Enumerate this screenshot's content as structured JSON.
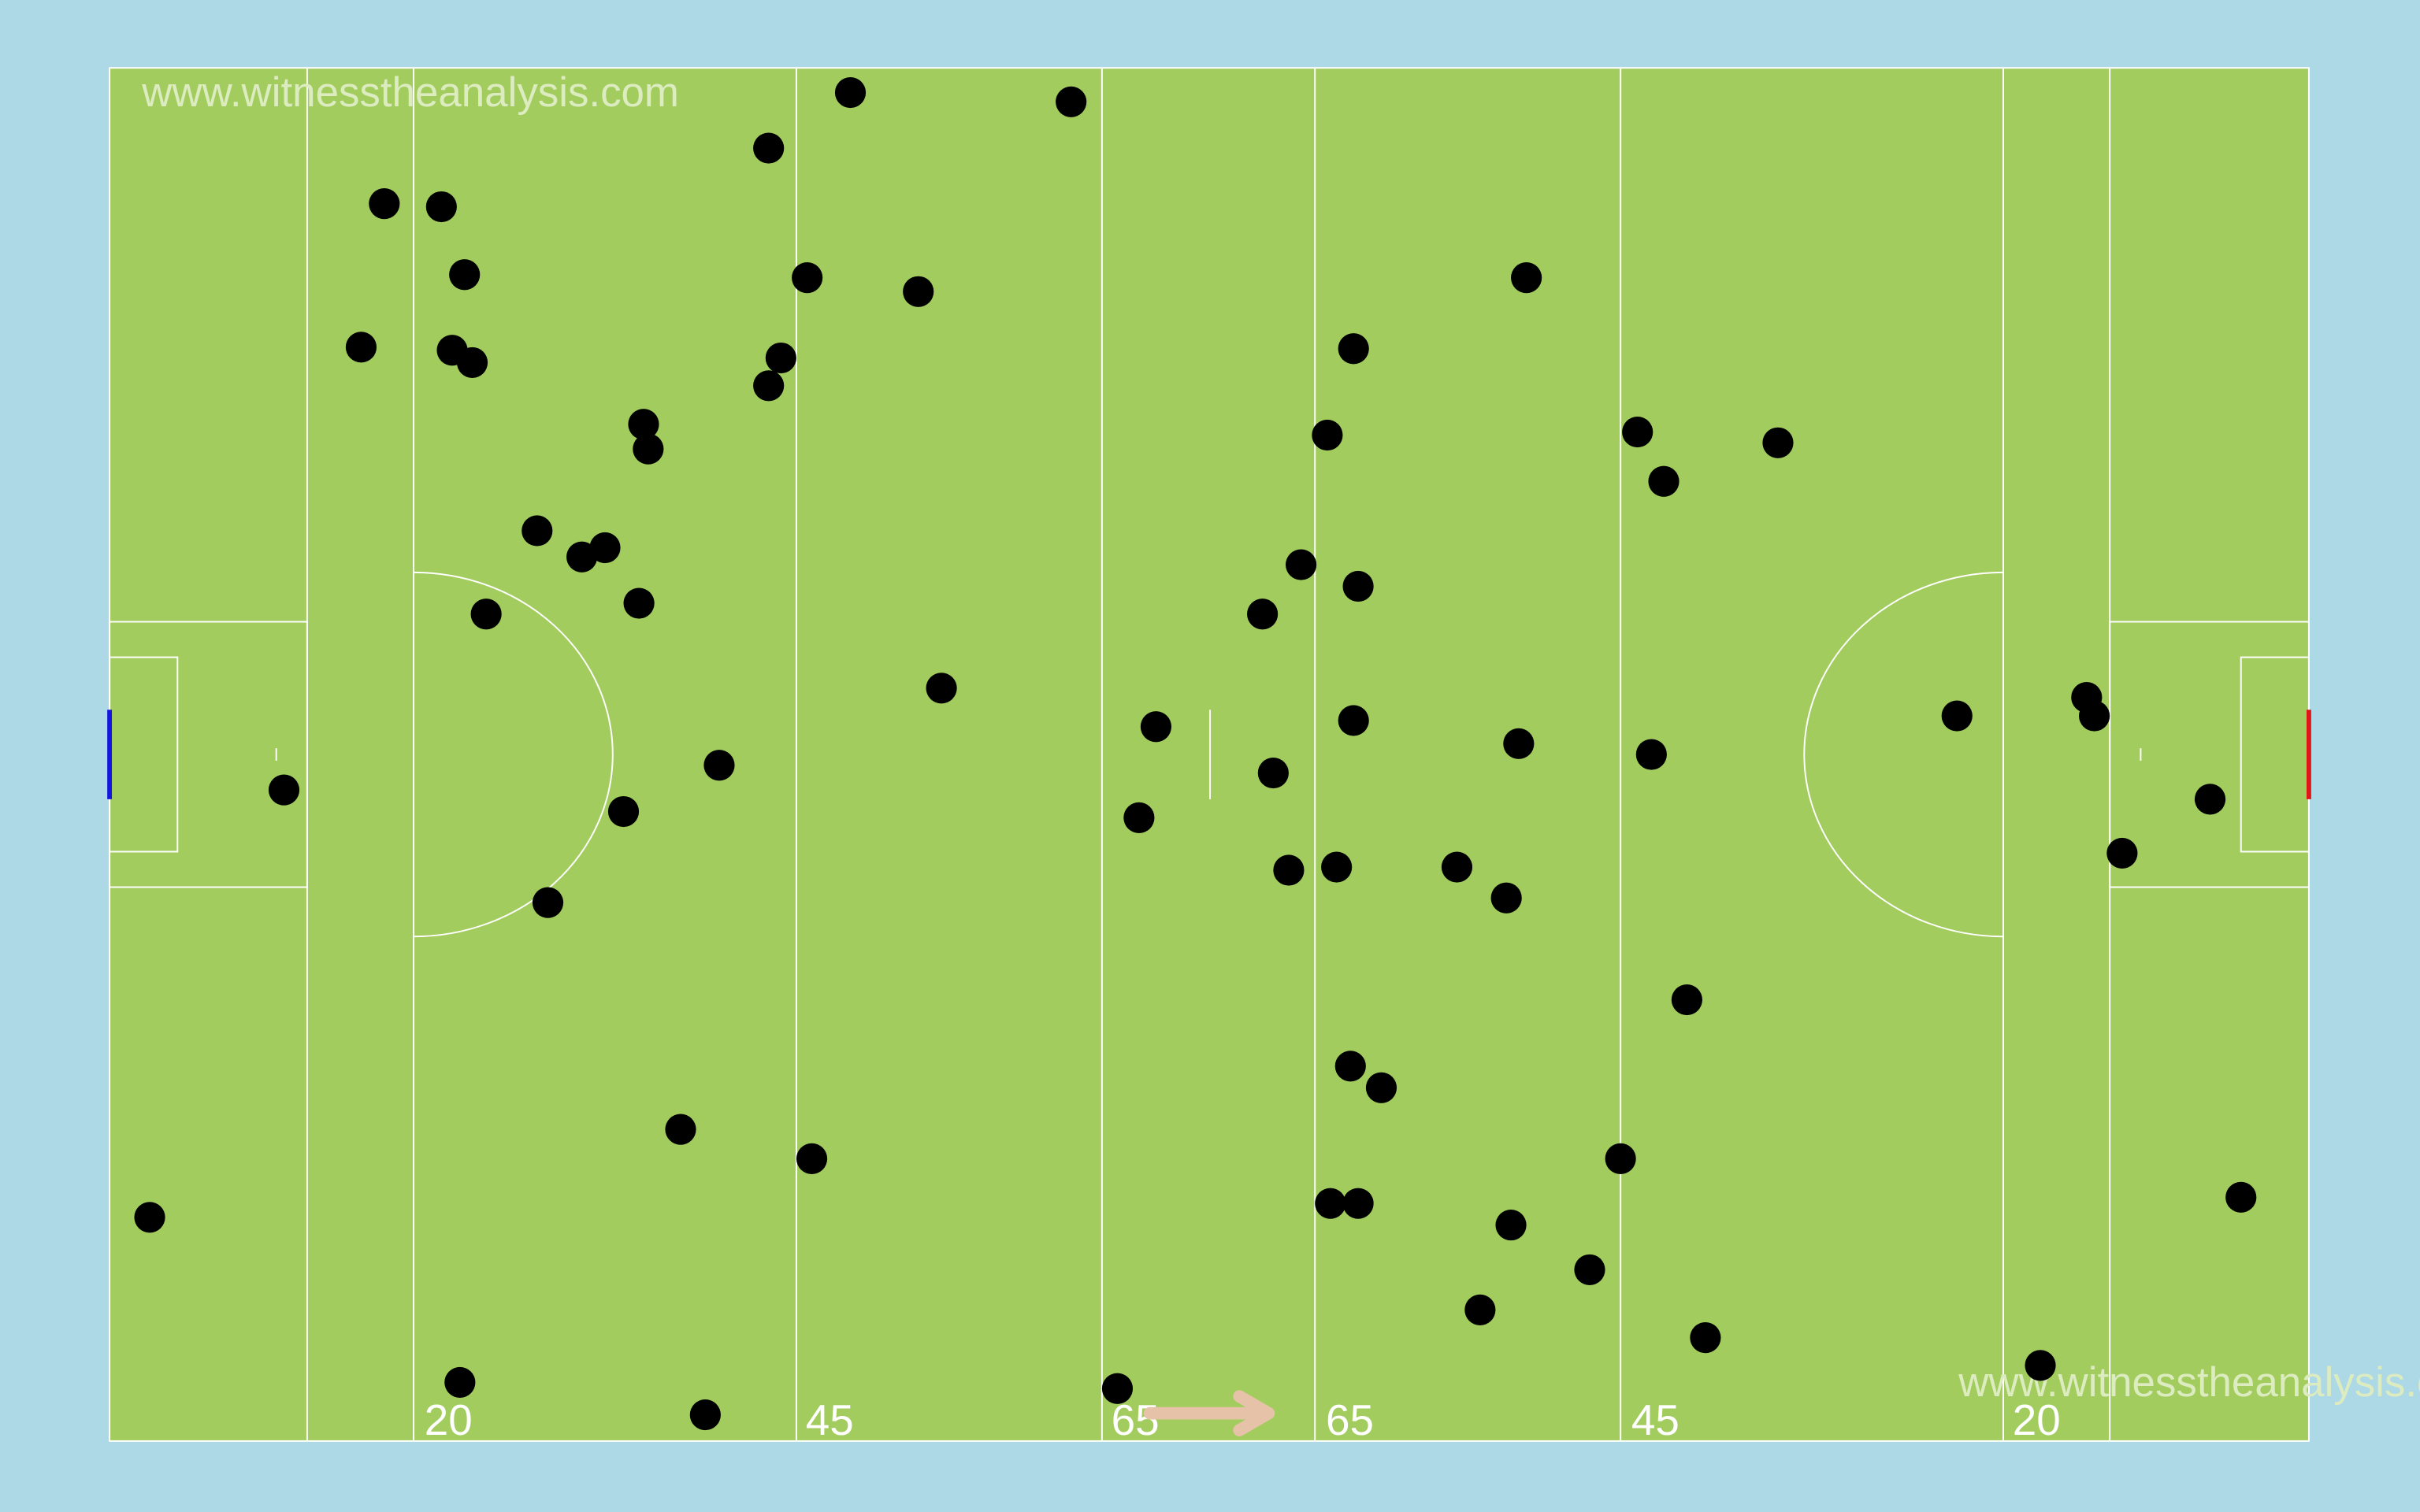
{
  "watermarks": {
    "top": "www.witnesstheanalysis.com",
    "bottom": "www.witnesstheanalysis.com"
  },
  "line_labels": {
    "left_20": "20",
    "left_45": "45",
    "left_65": "65",
    "right_65": "65",
    "right_45": "45",
    "right_20": "20"
  },
  "colors": {
    "background": "#add8e6",
    "pitch": "#a2cd5e",
    "lines": "#ffffff",
    "markers": "#000000",
    "left_goal": "#1515e0",
    "right_goal": "#e01515",
    "direction_arrow": "#e6c2a8"
  },
  "direction_arrow": {
    "meaning": "attacking direction",
    "orientation": "right"
  }
}
